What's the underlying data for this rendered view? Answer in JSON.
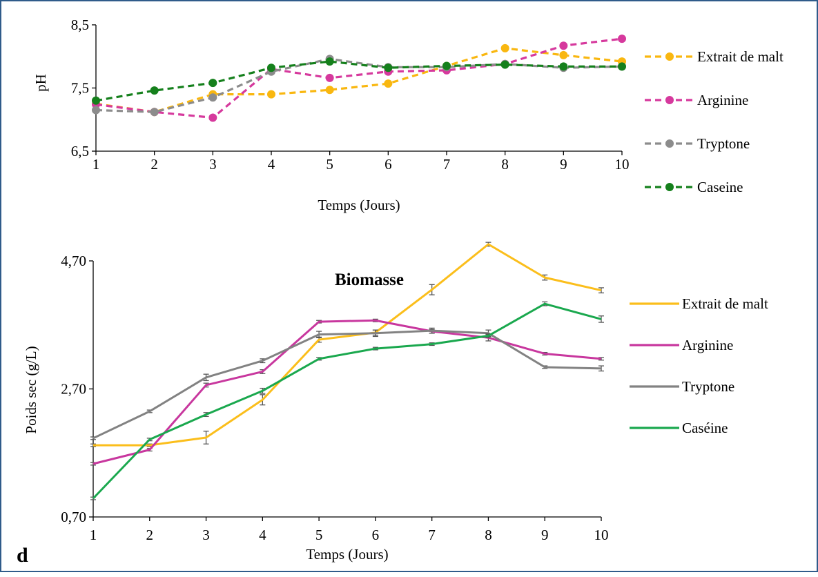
{
  "chart_data": [
    {
      "type": "line",
      "title": "",
      "xlabel": "Temps (Jours)",
      "ylabel": "pH",
      "x": [
        1,
        2,
        3,
        4,
        5,
        6,
        7,
        8,
        9,
        10
      ],
      "xticks": [
        "1",
        "2",
        "3",
        "4",
        "5",
        "6",
        "7",
        "8",
        "9",
        "10"
      ],
      "ylim": [
        6.5,
        8.5
      ],
      "yticks": [
        "6,5",
        "7,5",
        "8,5"
      ],
      "ytick_values": [
        6.5,
        7.5,
        8.5
      ],
      "line_style": "dashed",
      "markers": true,
      "legend_position": "right",
      "series": [
        {
          "name": "Extrait de malt",
          "color": "#f9b710",
          "values": [
            7.25,
            7.12,
            7.4,
            7.4,
            7.47,
            7.57,
            7.85,
            8.13,
            8.02,
            7.92
          ]
        },
        {
          "name": "Arginine",
          "color": "#d6399d",
          "values": [
            7.24,
            7.12,
            7.03,
            7.8,
            7.66,
            7.76,
            7.78,
            7.88,
            8.17,
            8.28
          ]
        },
        {
          "name": "Tryptone",
          "color": "#8c8c8c",
          "values": [
            7.15,
            7.12,
            7.35,
            7.76,
            7.96,
            7.83,
            7.83,
            7.88,
            7.82,
            7.84
          ]
        },
        {
          "name": "Caseine",
          "color": "#15801c",
          "values": [
            7.3,
            7.46,
            7.58,
            7.82,
            7.92,
            7.82,
            7.85,
            7.87,
            7.84,
            7.84
          ]
        }
      ]
    },
    {
      "type": "line",
      "title": "Biomasse",
      "xlabel": "Temps (Jours)",
      "ylabel": "Poids sec (g/L)",
      "x": [
        1,
        2,
        3,
        4,
        5,
        6,
        7,
        8,
        9,
        10
      ],
      "xticks": [
        "1",
        "2",
        "3",
        "4",
        "5",
        "6",
        "7",
        "8",
        "9",
        "10"
      ],
      "ylim": [
        0.7,
        4.7
      ],
      "yticks": [
        "0,70",
        "2,70",
        "4,70"
      ],
      "ytick_values": [
        0.7,
        2.7,
        4.7
      ],
      "line_style": "solid",
      "error_bars": true,
      "legend_position": "right",
      "series": [
        {
          "name": "Extrait de malt",
          "color": "#fbbe1b",
          "values": [
            1.82,
            1.82,
            1.94,
            2.53,
            3.47,
            3.58,
            4.25,
            4.96,
            4.44,
            4.24
          ],
          "errors": [
            0.02,
            0.02,
            0.1,
            0.08,
            0.04,
            0.04,
            0.08,
            0.03,
            0.04,
            0.04
          ]
        },
        {
          "name": "Arginine",
          "color": "#c8379e",
          "values": [
            1.53,
            1.75,
            2.76,
            2.97,
            3.75,
            3.77,
            3.6,
            3.5,
            3.25,
            3.17
          ],
          "errors": [
            0.02,
            0.02,
            0.03,
            0.03,
            0.02,
            0.02,
            0.03,
            0.05,
            0.02,
            0.02
          ]
        },
        {
          "name": "Tryptone",
          "color": "#828282",
          "values": [
            1.93,
            2.35,
            2.88,
            3.14,
            3.55,
            3.57,
            3.61,
            3.57,
            3.04,
            3.02
          ],
          "errors": [
            0.02,
            0.02,
            0.05,
            0.03,
            0.05,
            0.05,
            0.04,
            0.05,
            0.02,
            0.04
          ]
        },
        {
          "name": "Caséine",
          "color": "#1aa84e",
          "values": [
            0.99,
            1.91,
            2.3,
            2.67,
            3.17,
            3.33,
            3.4,
            3.53,
            4.03,
            3.79
          ],
          "errors": [
            0.02,
            0.02,
            0.03,
            0.04,
            0.02,
            0.02,
            0.02,
            0.03,
            0.03,
            0.05
          ]
        }
      ]
    }
  ],
  "panel_label": "d"
}
